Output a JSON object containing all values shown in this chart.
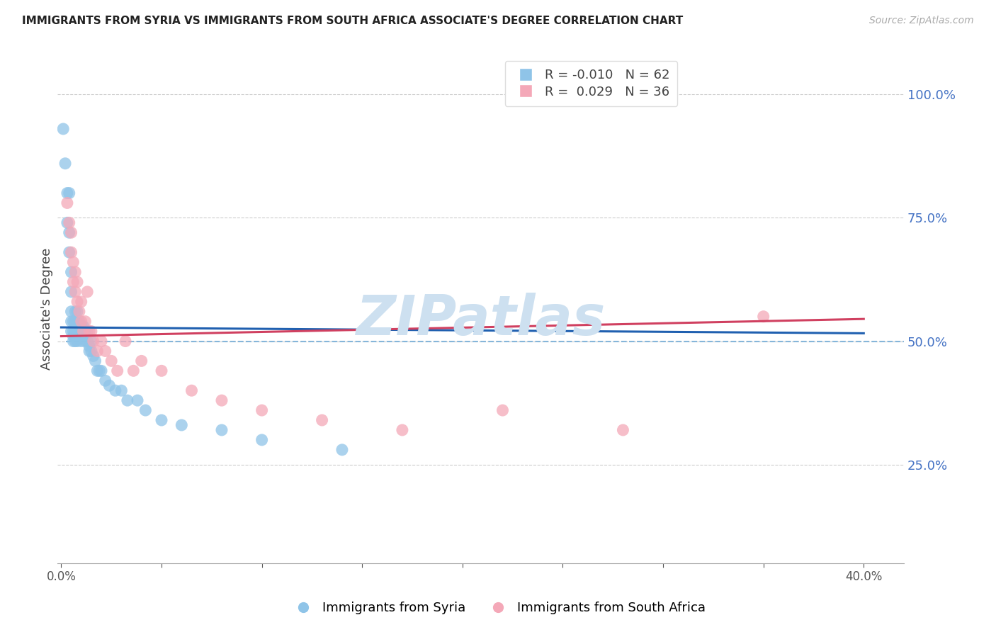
{
  "title": "IMMIGRANTS FROM SYRIA VS IMMIGRANTS FROM SOUTH AFRICA ASSOCIATE'S DEGREE CORRELATION CHART",
  "source": "Source: ZipAtlas.com",
  "ylabel": "Associate's Degree",
  "y_tick_labels": [
    "100.0%",
    "75.0%",
    "50.0%",
    "25.0%"
  ],
  "y_tick_values": [
    1.0,
    0.75,
    0.5,
    0.25
  ],
  "x_tick_values": [
    0.0,
    0.05,
    0.1,
    0.15,
    0.2,
    0.25,
    0.3,
    0.35,
    0.4
  ],
  "blue_R": -0.01,
  "blue_N": 62,
  "pink_R": 0.029,
  "pink_N": 36,
  "blue_color": "#8fc4e8",
  "pink_color": "#f4a8b8",
  "blue_line_color": "#2060b0",
  "pink_line_color": "#d04060",
  "dashed_line_color": "#7ab0d8",
  "dashed_line_y": 0.5,
  "watermark_color": "#cde0f0",
  "legend_label_blue": "Immigrants from Syria",
  "legend_label_pink": "Immigrants from South Africa",
  "blue_x": [
    0.001,
    0.002,
    0.003,
    0.003,
    0.004,
    0.004,
    0.004,
    0.005,
    0.005,
    0.005,
    0.005,
    0.005,
    0.006,
    0.006,
    0.006,
    0.006,
    0.007,
    0.007,
    0.007,
    0.007,
    0.007,
    0.008,
    0.008,
    0.008,
    0.008,
    0.008,
    0.009,
    0.009,
    0.009,
    0.01,
    0.01,
    0.01,
    0.01,
    0.011,
    0.011,
    0.011,
    0.012,
    0.012,
    0.012,
    0.013,
    0.013,
    0.014,
    0.014,
    0.015,
    0.015,
    0.016,
    0.017,
    0.018,
    0.019,
    0.02,
    0.022,
    0.024,
    0.027,
    0.03,
    0.033,
    0.038,
    0.042,
    0.05,
    0.06,
    0.08,
    0.1,
    0.14
  ],
  "blue_y": [
    0.93,
    0.86,
    0.8,
    0.74,
    0.8,
    0.72,
    0.68,
    0.64,
    0.6,
    0.56,
    0.54,
    0.52,
    0.54,
    0.52,
    0.51,
    0.5,
    0.56,
    0.54,
    0.52,
    0.51,
    0.5,
    0.56,
    0.54,
    0.52,
    0.51,
    0.5,
    0.54,
    0.52,
    0.51,
    0.53,
    0.52,
    0.51,
    0.5,
    0.53,
    0.52,
    0.51,
    0.52,
    0.51,
    0.5,
    0.52,
    0.5,
    0.49,
    0.48,
    0.5,
    0.48,
    0.47,
    0.46,
    0.44,
    0.44,
    0.44,
    0.42,
    0.41,
    0.4,
    0.4,
    0.38,
    0.38,
    0.36,
    0.34,
    0.33,
    0.32,
    0.3,
    0.28
  ],
  "pink_x": [
    0.003,
    0.004,
    0.005,
    0.005,
    0.006,
    0.006,
    0.007,
    0.007,
    0.008,
    0.008,
    0.009,
    0.01,
    0.01,
    0.011,
    0.012,
    0.013,
    0.014,
    0.015,
    0.016,
    0.018,
    0.02,
    0.022,
    0.025,
    0.028,
    0.032,
    0.036,
    0.04,
    0.05,
    0.065,
    0.08,
    0.1,
    0.13,
    0.17,
    0.22,
    0.28,
    0.35
  ],
  "pink_y": [
    0.78,
    0.74,
    0.72,
    0.68,
    0.66,
    0.62,
    0.64,
    0.6,
    0.62,
    0.58,
    0.56,
    0.58,
    0.54,
    0.52,
    0.54,
    0.6,
    0.52,
    0.52,
    0.5,
    0.48,
    0.5,
    0.48,
    0.46,
    0.44,
    0.5,
    0.44,
    0.46,
    0.44,
    0.4,
    0.38,
    0.36,
    0.34,
    0.32,
    0.36,
    0.32,
    0.55
  ],
  "blue_trendline_x": [
    0.0,
    0.4
  ],
  "blue_trendline_y": [
    0.528,
    0.516
  ],
  "pink_trendline_x": [
    0.0,
    0.4
  ],
  "pink_trendline_y": [
    0.51,
    0.545
  ],
  "xlim": [
    -0.002,
    0.42
  ],
  "ylim": [
    0.05,
    1.08
  ]
}
